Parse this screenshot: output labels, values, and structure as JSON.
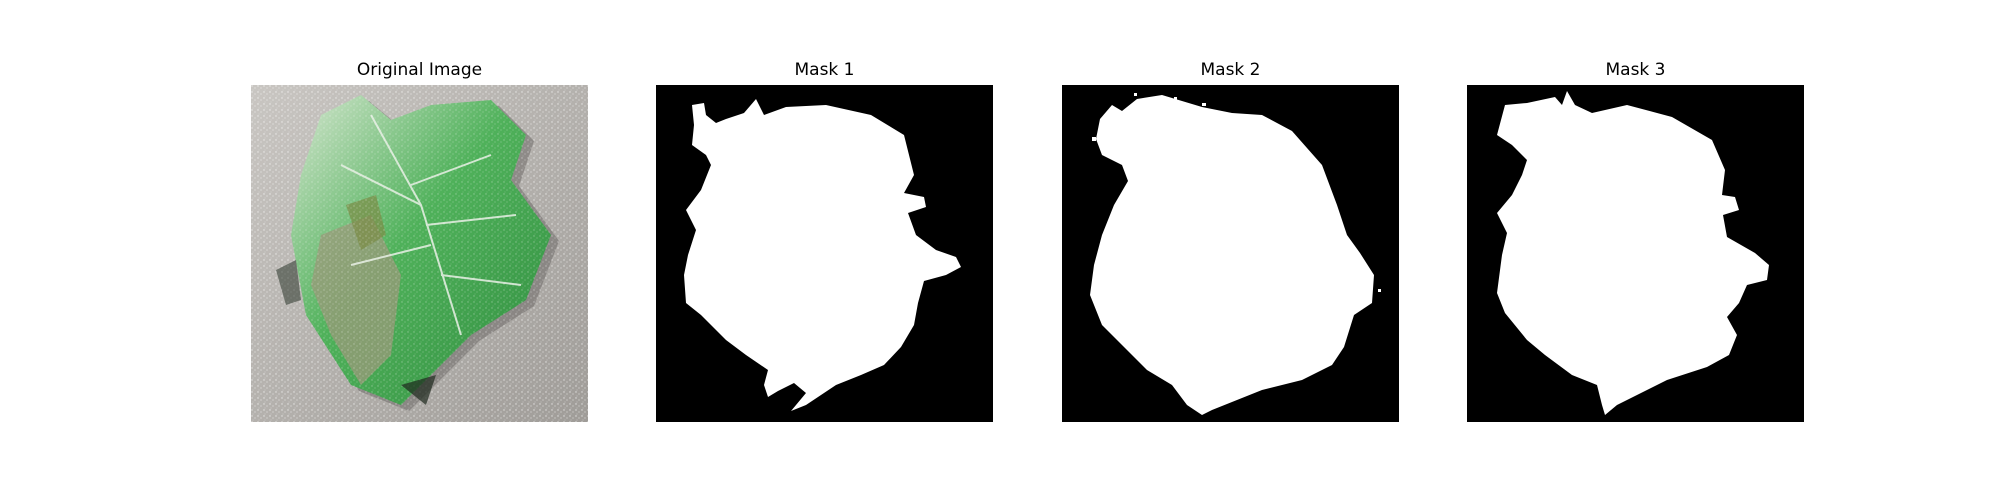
{
  "panels": [
    {
      "title": "Original Image",
      "kind": "photo",
      "depicts": "leaf-photo"
    },
    {
      "title": "Mask 1",
      "kind": "mask",
      "depicts": "binary-segmentation-mask"
    },
    {
      "title": "Mask 2",
      "kind": "mask",
      "depicts": "binary-segmentation-mask"
    },
    {
      "title": "Mask 3",
      "kind": "mask",
      "depicts": "binary-segmentation-mask"
    }
  ],
  "colors": {
    "background": "#ffffff",
    "mask_background": "#000000",
    "mask_foreground": "#ffffff",
    "leaf_green": "#3fa24a",
    "leaf_light": "#dfe8dc",
    "photo_background": "#b9b6b2"
  }
}
